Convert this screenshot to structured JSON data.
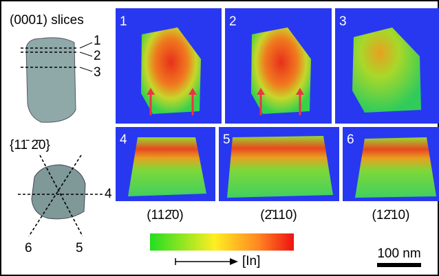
{
  "top_row": {
    "title": "(0001) slices",
    "slice_labels": [
      "1",
      "2",
      "3"
    ]
  },
  "bottom_row": {
    "title": "{11̄ 2̄0}",
    "slice_labels": [
      "4",
      "6",
      "5"
    ]
  },
  "panels": [
    "1",
    "2",
    "3",
    "4",
    "5",
    "6"
  ],
  "panel_captions": [
    "(112̄0)",
    "(2̄110)",
    "(12̄10)"
  ],
  "colorbar": {
    "label": "[In]"
  },
  "scale_bar": {
    "label": "100 nm"
  }
}
